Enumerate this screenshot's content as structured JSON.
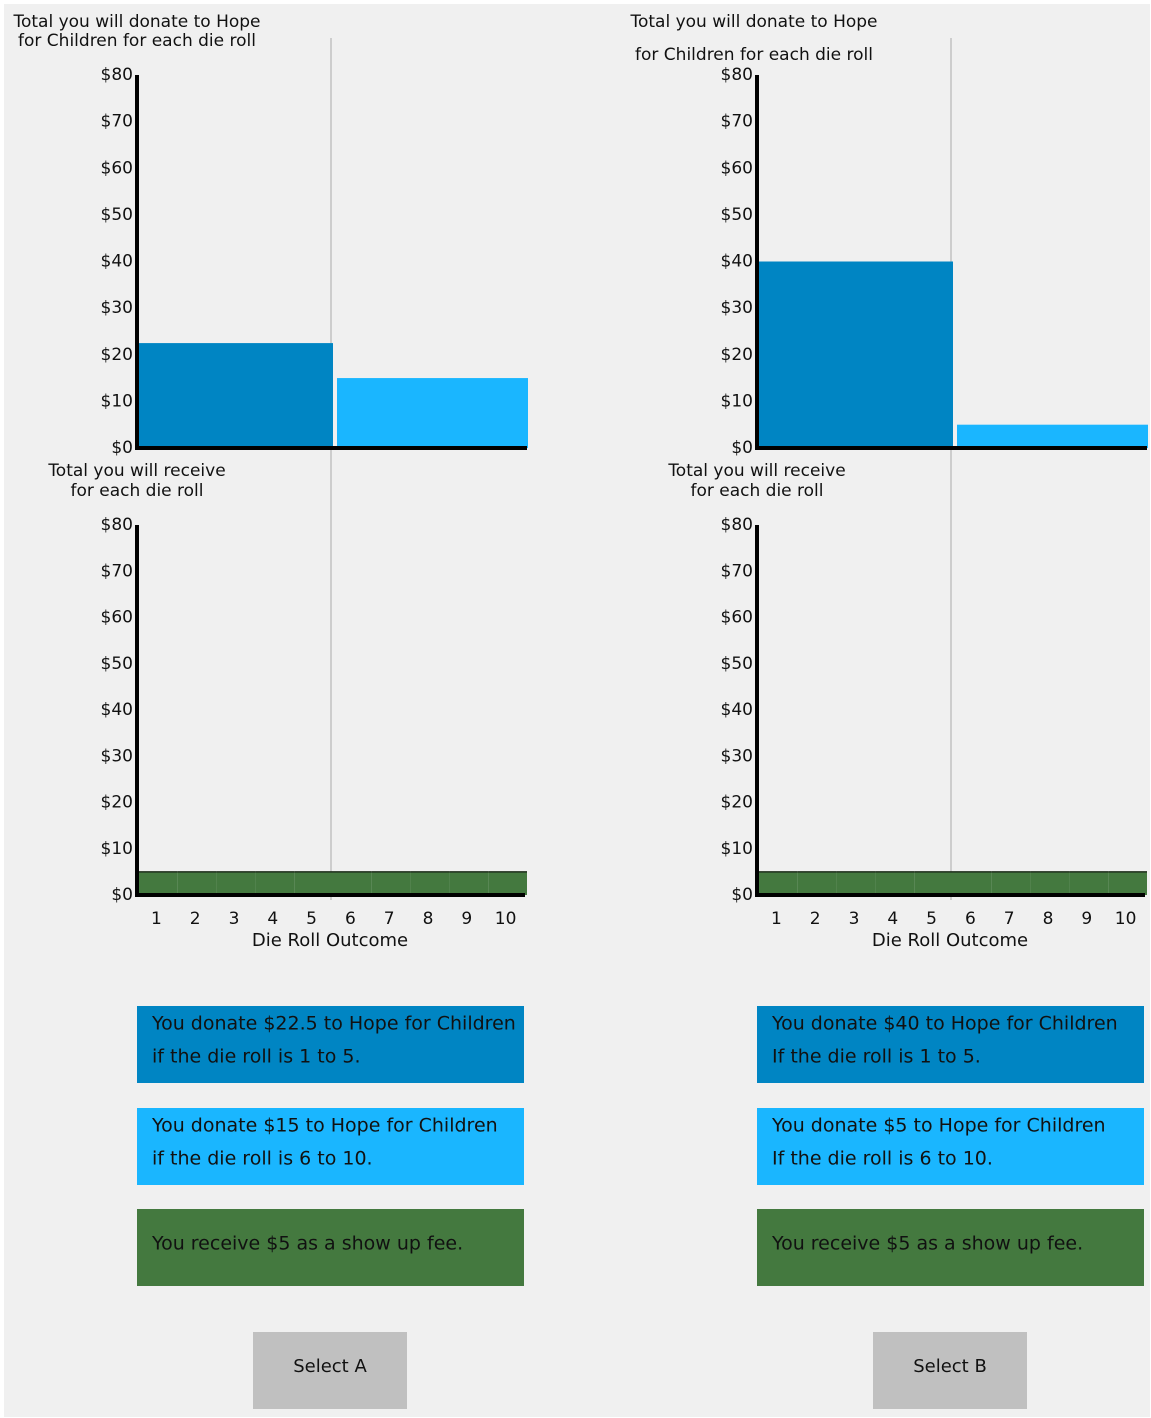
{
  "chart_data": [
    {
      "type": "bar",
      "title": [
        "Total you will donate to Hope",
        "for Children for each die roll"
      ],
      "categories": [
        null,
        null
      ],
      "values": [
        22.5,
        15
      ],
      "colors": [
        "#0085c3",
        "#1ab6ff"
      ],
      "ylim": [
        0,
        80
      ],
      "yticks": [
        {
          "value": 0,
          "label": "$0"
        },
        {
          "value": 10,
          "label": "$10"
        },
        {
          "value": 20,
          "label": "$20"
        },
        {
          "value": 30,
          "label": "$30"
        },
        {
          "value": 40,
          "label": "$40"
        },
        {
          "value": 50,
          "label": "$50"
        },
        {
          "value": 60,
          "label": "$60"
        },
        {
          "value": 70,
          "label": "$70"
        },
        {
          "value": 80,
          "label": "$80"
        }
      ]
    },
    {
      "type": "bar",
      "title": [
        "Total you will receive",
        "for each die roll"
      ],
      "xlabel": "Die Roll Outcome",
      "categories": [
        "1",
        "2",
        "3",
        "4",
        "5",
        "6",
        "7",
        "8",
        "9",
        "10"
      ],
      "values": [
        5,
        5,
        5,
        5,
        5,
        5,
        5,
        5,
        5,
        5
      ],
      "color": "#44793f",
      "ylim": [
        0,
        80
      ],
      "yticks": [
        {
          "value": 0,
          "label": "$0"
        },
        {
          "value": 10,
          "label": "$10"
        },
        {
          "value": 20,
          "label": "$20"
        },
        {
          "value": 30,
          "label": "$30"
        },
        {
          "value": 40,
          "label": "$40"
        },
        {
          "value": 50,
          "label": "$50"
        },
        {
          "value": 60,
          "label": "$60"
        },
        {
          "value": 70,
          "label": "$70"
        },
        {
          "value": 80,
          "label": "$80"
        }
      ]
    },
    {
      "type": "bar",
      "title": [
        "Total you will donate to Hope",
        "for Children for each die roll"
      ],
      "categories": [
        null,
        null
      ],
      "values": [
        40,
        5
      ],
      "colors": [
        "#0085c3",
        "#1ab6ff"
      ],
      "ylim": [
        0,
        80
      ],
      "yticks": [
        {
          "value": 0,
          "label": "$0"
        },
        {
          "value": 10,
          "label": "$10"
        },
        {
          "value": 20,
          "label": "$20"
        },
        {
          "value": 30,
          "label": "$30"
        },
        {
          "value": 40,
          "label": "$40"
        },
        {
          "value": 50,
          "label": "$50"
        },
        {
          "value": 60,
          "label": "$60"
        },
        {
          "value": 70,
          "label": "$70"
        },
        {
          "value": 80,
          "label": "$80"
        }
      ]
    },
    {
      "type": "bar",
      "title": [
        "Total you will receive",
        "for each die roll"
      ],
      "xlabel": "Die Roll Outcome",
      "categories": [
        "1",
        "2",
        "3",
        "4",
        "5",
        "6",
        "7",
        "8",
        "9",
        "10"
      ],
      "values": [
        5,
        5,
        5,
        5,
        5,
        5,
        5,
        5,
        5,
        5
      ],
      "color": "#44793f",
      "ylim": [
        0,
        80
      ],
      "yticks": [
        {
          "value": 0,
          "label": "$0"
        },
        {
          "value": 10,
          "label": "$10"
        },
        {
          "value": 20,
          "label": "$20"
        },
        {
          "value": 30,
          "label": "$30"
        },
        {
          "value": 40,
          "label": "$40"
        },
        {
          "value": 50,
          "label": "$50"
        },
        {
          "value": 60,
          "label": "$60"
        },
        {
          "value": 70,
          "label": "$70"
        },
        {
          "value": 80,
          "label": "$80"
        }
      ]
    }
  ],
  "options": [
    {
      "boxes": [
        {
          "lines": [
            "You donate $22.5 to Hope for Children",
            "if the die roll is 1 to 5."
          ],
          "color": "#0085c3"
        },
        {
          "lines": [
            "You donate $15 to Hope for Children",
            "if the die roll is 6 to 10."
          ],
          "color": "#1ab6ff"
        },
        {
          "lines": [
            "You receive $5 as a show up fee."
          ],
          "color": "#44793f"
        }
      ],
      "button": "Select A"
    },
    {
      "boxes": [
        {
          "lines": [
            "You donate $40 to Hope for Children",
            "If the die roll is 1 to 5."
          ],
          "color": "#0085c3"
        },
        {
          "lines": [
            "You donate $5 to Hope for Children",
            "If the die roll is 6 to 10."
          ],
          "color": "#1ab6ff"
        },
        {
          "lines": [
            "You receive $5 as a show up fee."
          ],
          "color": "#44793f"
        }
      ],
      "button": "Select B"
    }
  ]
}
